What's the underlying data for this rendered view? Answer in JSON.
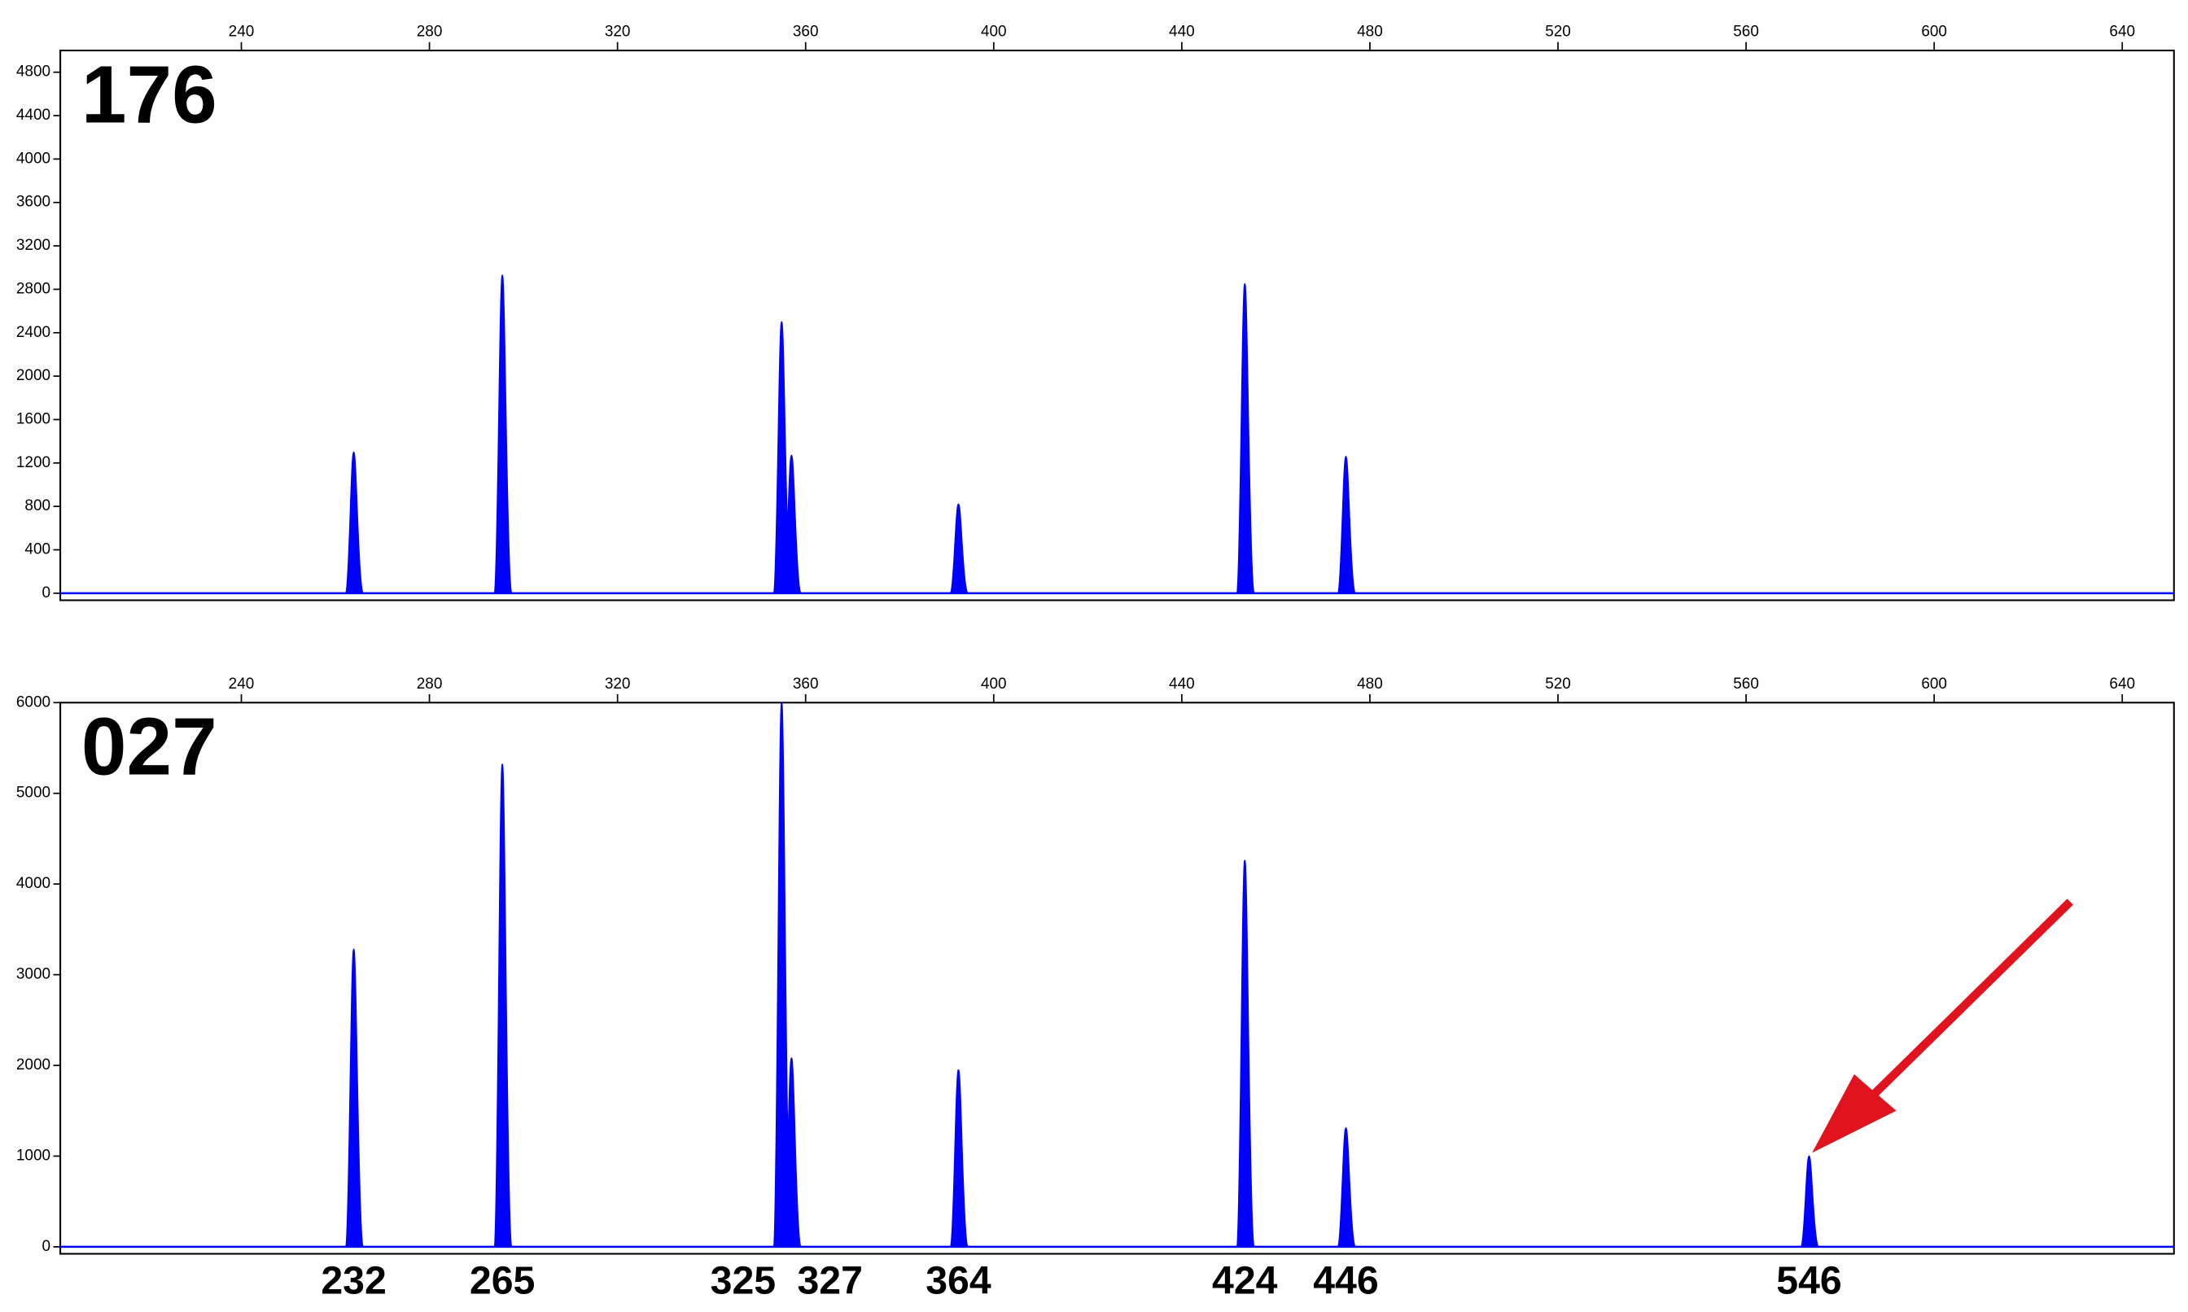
{
  "chart_data": [
    {
      "type": "peaks",
      "title": "176",
      "xlim": [
        201.5,
        651
      ],
      "xticks": [
        240,
        280,
        320,
        360,
        400,
        440,
        480,
        520,
        560,
        600,
        640
      ],
      "ylim": [
        0,
        5000
      ],
      "yticks": [
        0,
        400,
        800,
        1200,
        1600,
        2000,
        2400,
        2800,
        3200,
        3600,
        4000,
        4400,
        4800
      ],
      "series": [
        {
          "color": "#0000ff",
          "x": [
            263.9,
            295.5,
            354.9,
            357,
            392.5,
            453.4,
            474.9
          ],
          "values": [
            1300,
            2930,
            2500,
            1270,
            820,
            2850,
            1260
          ]
        }
      ]
    },
    {
      "type": "peaks",
      "title": "027",
      "xlim": [
        201.5,
        651
      ],
      "xticks": [
        240,
        280,
        320,
        360,
        400,
        440,
        480,
        520,
        560,
        600,
        640
      ],
      "ylim": [
        0,
        6000
      ],
      "yticks": [
        0,
        1000,
        2000,
        3000,
        4000,
        5000,
        6000
      ],
      "series": [
        {
          "color": "#0000ff",
          "x": [
            263.9,
            295.5,
            354.9,
            357,
            392.5,
            453.4,
            474.9,
            573.4
          ],
          "values": [
            3280,
            5320,
            6000,
            2080,
            1950,
            4260,
            1310,
            1000
          ]
        }
      ],
      "peak_labels": [
        "232",
        "265",
        "325",
        "327",
        "364",
        "424",
        "446",
        "546"
      ]
    }
  ]
}
